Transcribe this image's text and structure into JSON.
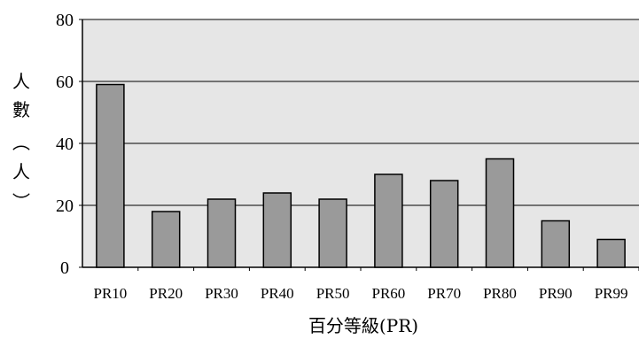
{
  "chart_data": {
    "type": "bar",
    "title": "",
    "xlabel": "百分等級(PR)",
    "ylabel": [
      "人",
      "數",
      "︵",
      "人",
      "︶"
    ],
    "categories": [
      "PR10",
      "PR20",
      "PR30",
      "PR40",
      "PR50",
      "PR60",
      "PR70",
      "PR80",
      "PR90",
      "PR99"
    ],
    "values": [
      59,
      18,
      22,
      24,
      22,
      30,
      28,
      35,
      15,
      9
    ],
    "ylim": [
      0,
      80
    ],
    "yticks": [
      0,
      20,
      40,
      60,
      80
    ],
    "grid": true,
    "legend": "none",
    "colors": {
      "bar": "#9a9a9a",
      "bar_stroke": "#000000",
      "plot_bg": "#e6e6e6",
      "grid": "#000000"
    }
  }
}
